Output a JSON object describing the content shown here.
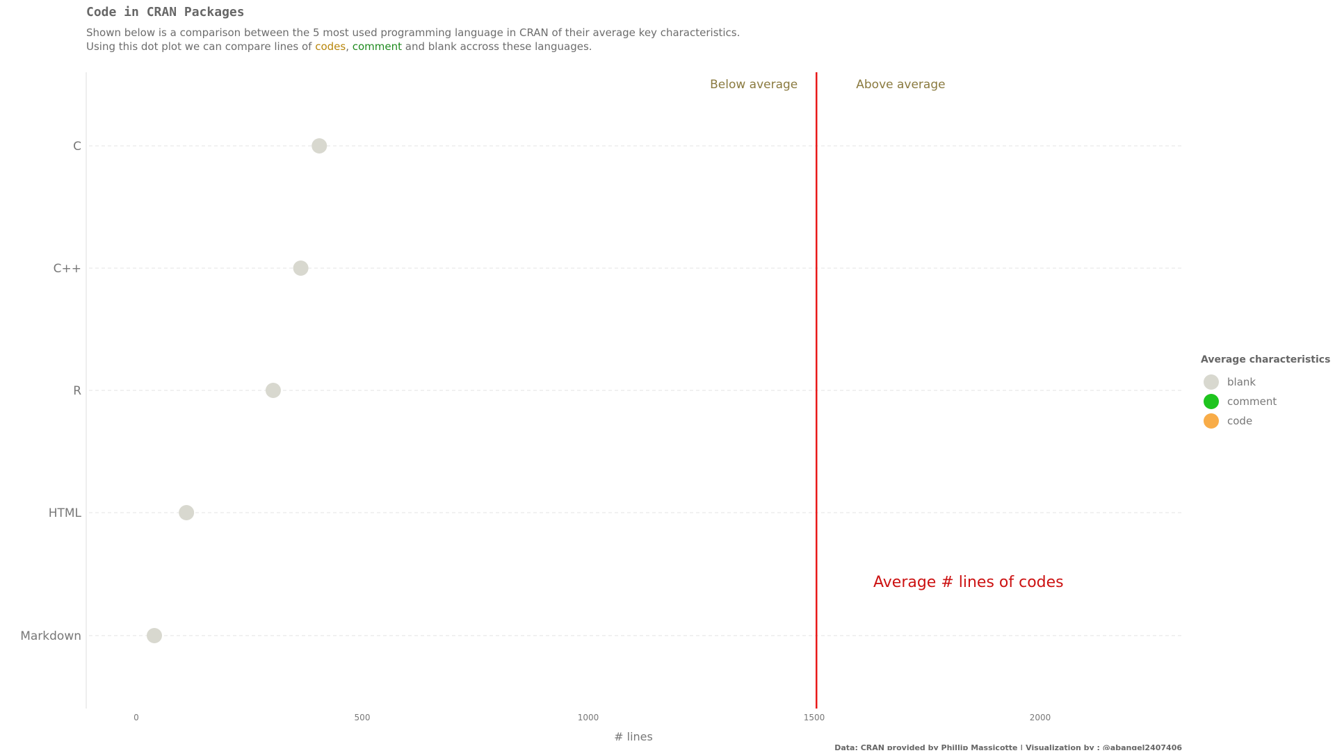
{
  "chart_data": {
    "type": "scatter",
    "title": "Code in CRAN Packages",
    "subtitle": {
      "line1": "Shown below is a comparison between the 5 most used programming language in CRAN of their average key characteristics.",
      "line2_before": "Using this dot plot we can compare lines of ",
      "line2_codes": "codes",
      "line2_comma": ", ",
      "line2_comment": "comment",
      "line2_after": " and blank accross these languages."
    },
    "xlabel": "# lines",
    "ylabel": "",
    "xlim": [
      -100,
      2320
    ],
    "x_ticks": [
      0,
      500,
      1000,
      1500,
      2000
    ],
    "categories": [
      "C",
      "C++",
      "R",
      "HTML",
      "Markdown"
    ],
    "series": [
      {
        "name": "blank",
        "color": "#d8d8cf",
        "values": [
          405,
          364,
          303,
          111,
          40
        ]
      }
    ],
    "average_line": {
      "x": 1505,
      "color": "#e81818",
      "label": "Average # lines of codes"
    },
    "annotations": {
      "below": "Below average",
      "above": "Above average"
    },
    "legend": {
      "title": "Average characteristics",
      "position": "right",
      "items": [
        {
          "label": "blank",
          "color": "#d8d8cf"
        },
        {
          "label": "comment",
          "color": "#1ec41e"
        },
        {
          "label": "code",
          "color": "#f8ac48"
        }
      ]
    },
    "caption": "Data: CRAN provided by Phillip Massicotte | Visualization by : @abangel2407406",
    "grid": "horizontal dashed"
  },
  "colors": {
    "codes": "#b8860b",
    "comment": "#1e8a1e",
    "grid": "#e3e3e3",
    "axis": "#dddddd"
  }
}
